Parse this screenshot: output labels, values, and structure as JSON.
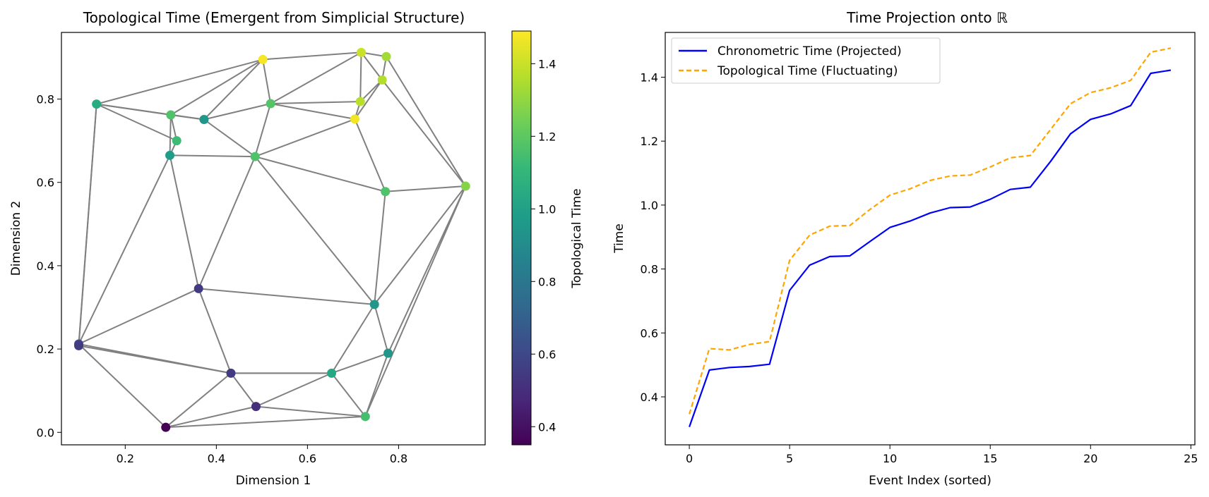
{
  "chart_data": [
    {
      "type": "scatter",
      "title": "Topological Time (Emergent from Simplicial Structure)",
      "xlabel": "Dimension 1",
      "ylabel": "Dimension 2",
      "xlim": [
        0.06,
        0.99
      ],
      "ylim": [
        -0.03,
        0.96
      ],
      "xticks": [
        "0.2",
        "0.4",
        "0.6",
        "0.8"
      ],
      "yticks": [
        "0.0",
        "0.2",
        "0.4",
        "0.6",
        "0.8"
      ],
      "edge_color": "#808080",
      "colorbar": {
        "label": "Topological Time",
        "colormap": "viridis",
        "range": [
          0.35,
          1.49
        ],
        "ticks": [
          "0.4",
          "0.6",
          "0.8",
          "1.0",
          "1.2",
          "1.4"
        ]
      },
      "points": [
        {
          "x": 0.289,
          "y": 0.012,
          "t": 0.35
        },
        {
          "x": 0.098,
          "y": 0.212,
          "t": 0.6
        },
        {
          "x": 0.098,
          "y": 0.208,
          "t": 0.55
        },
        {
          "x": 0.432,
          "y": 0.142,
          "t": 0.55
        },
        {
          "x": 0.487,
          "y": 0.062,
          "t": 0.5
        },
        {
          "x": 0.653,
          "y": 0.142,
          "t": 1.03
        },
        {
          "x": 0.727,
          "y": 0.038,
          "t": 1.15
        },
        {
          "x": 0.777,
          "y": 0.19,
          "t": 0.95
        },
        {
          "x": 0.747,
          "y": 0.307,
          "t": 0.95
        },
        {
          "x": 0.361,
          "y": 0.345,
          "t": 0.55
        },
        {
          "x": 0.137,
          "y": 0.788,
          "t": 1.05
        },
        {
          "x": 0.3,
          "y": 0.762,
          "t": 1.17
        },
        {
          "x": 0.313,
          "y": 0.7,
          "t": 1.13
        },
        {
          "x": 0.298,
          "y": 0.665,
          "t": 0.98
        },
        {
          "x": 0.373,
          "y": 0.751,
          "t": 0.95
        },
        {
          "x": 0.485,
          "y": 0.662,
          "t": 1.17
        },
        {
          "x": 0.502,
          "y": 0.895,
          "t": 1.48
        },
        {
          "x": 0.519,
          "y": 0.789,
          "t": 1.18
        },
        {
          "x": 0.704,
          "y": 0.752,
          "t": 1.47
        },
        {
          "x": 0.716,
          "y": 0.794,
          "t": 1.37
        },
        {
          "x": 0.718,
          "y": 0.912,
          "t": 1.4
        },
        {
          "x": 0.773,
          "y": 0.902,
          "t": 1.33
        },
        {
          "x": 0.764,
          "y": 0.846,
          "t": 1.36
        },
        {
          "x": 0.947,
          "y": 0.591,
          "t": 1.28
        },
        {
          "x": 0.771,
          "y": 0.578,
          "t": 1.17
        }
      ],
      "edges": [
        [
          0,
          1
        ],
        [
          0,
          3
        ],
        [
          0,
          4
        ],
        [
          0,
          6
        ],
        [
          1,
          2
        ],
        [
          1,
          3
        ],
        [
          2,
          3
        ],
        [
          1,
          9
        ],
        [
          1,
          13
        ],
        [
          1,
          10
        ],
        [
          2,
          10
        ],
        [
          3,
          9
        ],
        [
          3,
          4
        ],
        [
          3,
          5
        ],
        [
          4,
          5
        ],
        [
          4,
          6
        ],
        [
          5,
          6
        ],
        [
          5,
          7
        ],
        [
          5,
          8
        ],
        [
          5,
          3
        ],
        [
          6,
          7
        ],
        [
          6,
          23
        ],
        [
          7,
          23
        ],
        [
          7,
          8
        ],
        [
          8,
          23
        ],
        [
          8,
          9
        ],
        [
          8,
          15
        ],
        [
          8,
          24
        ],
        [
          9,
          13
        ],
        [
          9,
          15
        ],
        [
          10,
          11
        ],
        [
          10,
          12
        ],
        [
          10,
          14
        ],
        [
          10,
          16
        ],
        [
          11,
          12
        ],
        [
          11,
          13
        ],
        [
          11,
          16
        ],
        [
          11,
          14
        ],
        [
          12,
          13
        ],
        [
          13,
          15
        ],
        [
          14,
          15
        ],
        [
          14,
          16
        ],
        [
          14,
          17
        ],
        [
          15,
          17
        ],
        [
          15,
          18
        ],
        [
          15,
          24
        ],
        [
          16,
          17
        ],
        [
          16,
          20
        ],
        [
          17,
          20
        ],
        [
          17,
          19
        ],
        [
          17,
          18
        ],
        [
          18,
          19
        ],
        [
          18,
          22
        ],
        [
          18,
          24
        ],
        [
          19,
          20
        ],
        [
          19,
          22
        ],
        [
          20,
          21
        ],
        [
          20,
          22
        ],
        [
          21,
          22
        ],
        [
          21,
          23
        ],
        [
          22,
          23
        ],
        [
          24,
          23
        ]
      ]
    },
    {
      "type": "line",
      "title": "Time Projection onto ℝ",
      "xlabel": "Event Index (sorted)",
      "ylabel": "Time",
      "xlim": [
        -1.2,
        25.2
      ],
      "ylim": [
        0.25,
        1.54
      ],
      "xticks": [
        "0",
        "5",
        "10",
        "15",
        "20",
        "25"
      ],
      "yticks": [
        "0.4",
        "0.6",
        "0.8",
        "1.0",
        "1.2",
        "1.4"
      ],
      "legend_position": "upper-left",
      "x": [
        0,
        1,
        2,
        3,
        4,
        5,
        6,
        7,
        8,
        9,
        10,
        11,
        12,
        13,
        14,
        15,
        16,
        17,
        18,
        19,
        20,
        21,
        22,
        23,
        24
      ],
      "series": [
        {
          "name": "Chronometric Time (Projected)",
          "color": "#0000ff",
          "style": "solid",
          "values": [
            0.306,
            0.484,
            0.492,
            0.495,
            0.502,
            0.733,
            0.812,
            0.839,
            0.841,
            0.886,
            0.93,
            0.95,
            0.975,
            0.992,
            0.994,
            1.018,
            1.049,
            1.056,
            1.136,
            1.223,
            1.268,
            1.285,
            1.311,
            1.412,
            1.422
          ]
        },
        {
          "name": "Topological Time (Fluctuating)",
          "color": "#ffa500",
          "style": "dashed",
          "values": [
            0.346,
            0.551,
            0.547,
            0.564,
            0.573,
            0.827,
            0.906,
            0.934,
            0.936,
            0.986,
            1.031,
            1.051,
            1.077,
            1.091,
            1.094,
            1.119,
            1.148,
            1.155,
            1.236,
            1.317,
            1.352,
            1.367,
            1.39,
            1.478,
            1.491
          ]
        }
      ]
    }
  ]
}
